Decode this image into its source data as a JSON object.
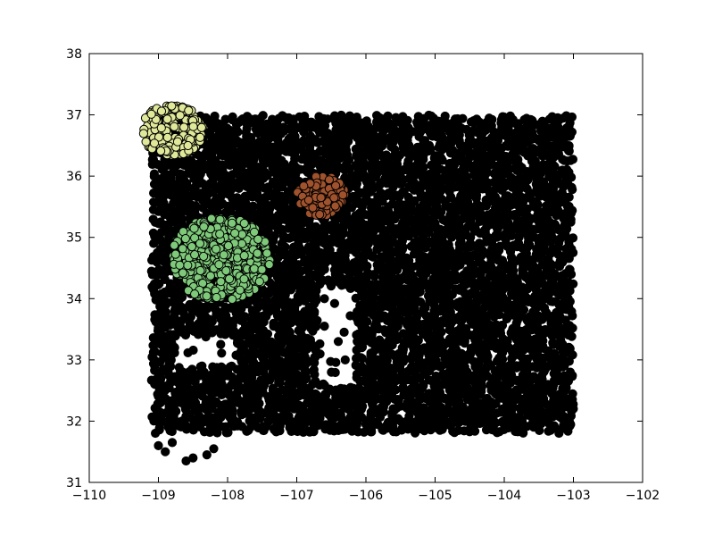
{
  "chart_data": {
    "type": "scatter",
    "xlim": [
      -110,
      -102
    ],
    "ylim": [
      31,
      38
    ],
    "xticks": [
      -110,
      -109,
      -108,
      -107,
      -106,
      -105,
      -104,
      -103,
      -102
    ],
    "yticks": [
      31,
      32,
      33,
      34,
      35,
      36,
      37,
      38
    ],
    "xtick_labels": [
      "−110",
      "−109",
      "−108",
      "−107",
      "−106",
      "−105",
      "−104",
      "−103",
      "−102"
    ],
    "ytick_labels": [
      "31",
      "32",
      "33",
      "34",
      "35",
      "36",
      "37",
      "38"
    ],
    "grid": false,
    "background_points": {
      "color": "#000000",
      "regions": [
        {
          "x0": -109.1,
          "x1": -103.0,
          "y0": 31.8,
          "y1": 37.0
        }
      ],
      "gaps": [
        {
          "x0": -106.7,
          "x1": -106.15,
          "y0": 32.6,
          "y1": 34.2
        },
        {
          "x0": -108.7,
          "x1": -107.9,
          "y0": 32.9,
          "y1": 33.4
        }
      ],
      "outliers": [
        {
          "x": -109.0,
          "y": 31.6
        },
        {
          "x": -108.9,
          "y": 31.5
        },
        {
          "x": -108.6,
          "y": 31.35
        },
        {
          "x": -108.5,
          "y": 31.4
        },
        {
          "x": -108.3,
          "y": 31.45
        },
        {
          "x": -108.2,
          "y": 31.55
        },
        {
          "x": -108.8,
          "y": 31.65
        },
        {
          "x": -106.6,
          "y": 33.55
        },
        {
          "x": -106.4,
          "y": 33.3
        },
        {
          "x": -106.3,
          "y": 33.0
        },
        {
          "x": -106.5,
          "y": 32.8
        },
        {
          "x": -106.6,
          "y": 34.0
        }
      ]
    },
    "clusters": [
      {
        "color": "#e0e89a",
        "center": [
          -108.8,
          36.75
        ],
        "radius": 0.45
      },
      {
        "color": "#a0522d",
        "center": [
          -106.65,
          35.68
        ],
        "radius": 0.35
      },
      {
        "color": "#7ec97a",
        "center": [
          -108.1,
          34.65
        ],
        "radius": 0.72
      }
    ]
  }
}
